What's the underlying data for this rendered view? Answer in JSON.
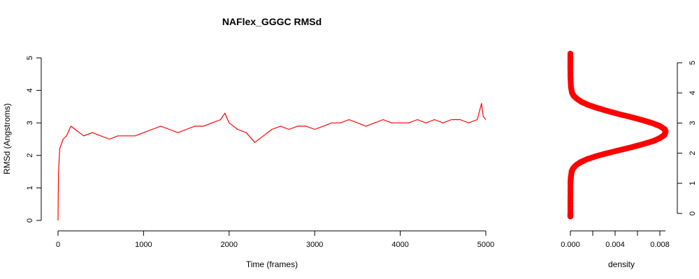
{
  "chart_data": [
    {
      "type": "line",
      "title": "NAFlex_GGGC RMSd",
      "xlabel": "Time (frames)",
      "ylabel": "RMSd (Angstroms)",
      "xlim": [
        0,
        5000
      ],
      "ylim": [
        0,
        5
      ],
      "x_ticks": [
        0,
        1000,
        2000,
        3000,
        4000,
        5000
      ],
      "y_ticks": [
        0,
        1,
        2,
        3,
        4,
        5
      ],
      "grid": false,
      "color": "#ff0000",
      "series": [
        {
          "x": [
            0,
            5,
            20,
            60,
            100,
            150,
            200,
            250,
            300,
            400,
            500,
            600,
            700,
            800,
            900,
            1000,
            1100,
            1200,
            1300,
            1400,
            1500,
            1600,
            1700,
            1800,
            1900,
            1950,
            2000,
            2100,
            2200,
            2300,
            2400,
            2500,
            2600,
            2700,
            2800,
            2900,
            3000,
            3100,
            3200,
            3300,
            3400,
            3500,
            3600,
            3700,
            3800,
            3900,
            4000,
            4100,
            4200,
            4300,
            4400,
            4500,
            4600,
            4700,
            4800,
            4900,
            4950,
            4970,
            5000
          ],
          "values": [
            0.0,
            1.4,
            2.2,
            2.5,
            2.6,
            2.9,
            2.8,
            2.7,
            2.6,
            2.7,
            2.6,
            2.5,
            2.6,
            2.6,
            2.6,
            2.7,
            2.8,
            2.9,
            2.8,
            2.7,
            2.8,
            2.9,
            2.9,
            3.0,
            3.1,
            3.3,
            3.0,
            2.8,
            2.7,
            2.4,
            2.6,
            2.8,
            2.9,
            2.8,
            2.9,
            2.9,
            2.8,
            2.9,
            3.0,
            3.0,
            3.1,
            3.0,
            2.9,
            3.0,
            3.1,
            3.0,
            3.0,
            3.0,
            3.1,
            3.0,
            3.1,
            3.0,
            3.1,
            3.1,
            3.0,
            3.1,
            3.6,
            3.2,
            3.1
          ]
        }
      ]
    },
    {
      "type": "scatter",
      "xlabel": "density",
      "xlim": [
        0,
        0.0085
      ],
      "ylim": [
        0,
        5
      ],
      "x_ticks": [
        0.0,
        0.004,
        0.008
      ],
      "x_tick_labels": [
        "0.000",
        "0.004",
        "0.008"
      ],
      "x_minor_ticks": [
        0.002,
        0.006
      ],
      "y_ticks": [
        0,
        1,
        2,
        3,
        4,
        5
      ],
      "y_axis_side": "right",
      "color": "#ff0000",
      "series": [
        {
          "y": [
            -0.1,
            0.0,
            0.5,
            1.0,
            1.2,
            1.4,
            1.5,
            1.6,
            1.7,
            1.8,
            1.9,
            2.0,
            2.1,
            2.2,
            2.3,
            2.4,
            2.5,
            2.6,
            2.7,
            2.75,
            2.8,
            2.9,
            3.0,
            3.1,
            3.2,
            3.3,
            3.4,
            3.5,
            3.6,
            3.7,
            3.8,
            3.9,
            4.0,
            4.2,
            4.5,
            4.8,
            5.0,
            5.3
          ],
          "values": [
            0.0,
            0.0,
            0.0,
            1e-05,
            4e-05,
            0.00012,
            0.00025,
            0.0005,
            0.0009,
            0.0015,
            0.0023,
            0.0033,
            0.0044,
            0.0055,
            0.0065,
            0.0074,
            0.008,
            0.0084,
            0.0085,
            0.0085,
            0.0084,
            0.008,
            0.0073,
            0.0064,
            0.0054,
            0.0043,
            0.0033,
            0.0024,
            0.0016,
            0.001,
            0.0006,
            0.0003,
            0.00015,
            5e-05,
            1e-05,
            0.0,
            0.0,
            0.0
          ]
        }
      ]
    }
  ]
}
